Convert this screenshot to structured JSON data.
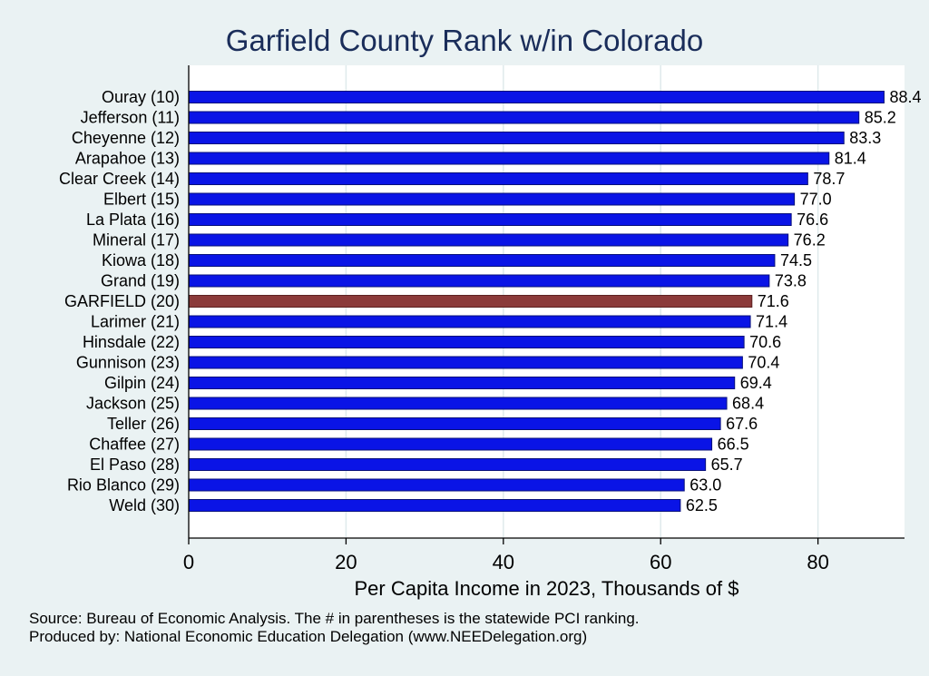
{
  "chart_data": {
    "type": "bar",
    "orientation": "horizontal",
    "title": "Garfield County Rank w/in Colorado",
    "xlabel": "Per Capita Income in 2023, Thousands of $",
    "ylabel": "",
    "xlim": [
      0,
      91
    ],
    "xticks": [
      0,
      20,
      40,
      60,
      80
    ],
    "grid": true,
    "categories": [
      "Ouray (10)",
      "Jefferson (11)",
      "Cheyenne (12)",
      "Arapahoe (13)",
      "Clear Creek (14)",
      "Elbert (15)",
      "La Plata (16)",
      "Mineral (17)",
      "Kiowa (18)",
      "Grand (19)",
      "GARFIELD (20)",
      "Larimer (21)",
      "Hinsdale (22)",
      "Gunnison (23)",
      "Gilpin (24)",
      "Jackson (25)",
      "Teller (26)",
      "Chaffee (27)",
      "El Paso (28)",
      "Rio Blanco (29)",
      "Weld (30)"
    ],
    "values": [
      88.4,
      85.2,
      83.3,
      81.4,
      78.7,
      77.0,
      76.6,
      76.2,
      74.5,
      73.8,
      71.6,
      71.4,
      70.6,
      70.4,
      69.4,
      68.4,
      67.6,
      66.5,
      65.7,
      63.0,
      62.5
    ],
    "value_labels": [
      "88.4",
      "85.2",
      "83.3",
      "81.4",
      "78.7",
      "77.0",
      "76.6",
      "76.2",
      "74.5",
      "73.8",
      "71.6",
      "71.4",
      "70.6",
      "70.4",
      "69.4",
      "68.4",
      "67.6",
      "66.5",
      "65.7",
      "63.0",
      "62.5"
    ],
    "highlight": "GARFIELD (20)",
    "colors": {
      "bar": "#0a14e6",
      "highlight": "#8b3a3a",
      "bar_outline": "#08107a",
      "grid": "#dfeaec",
      "plot_bg": "#ffffff",
      "page_bg": "#eaf2f3",
      "title": "#1a2d5a"
    }
  },
  "notes": {
    "source": "Source: Bureau of Economic Analysis. The # in parentheses is the statewide PCI ranking.",
    "produced": "Produced by: National Economic Education Delegation (www.NEEDelegation.org)"
  }
}
